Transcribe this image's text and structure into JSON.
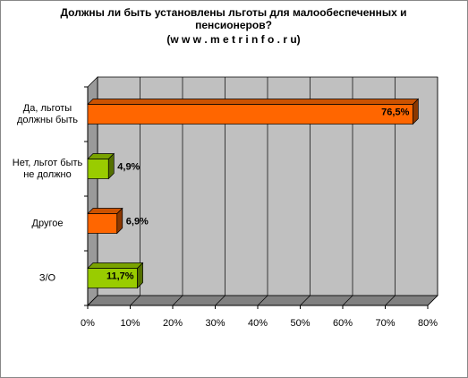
{
  "chart_data": {
    "type": "bar",
    "orientation": "horizontal",
    "title": "Должны ли быть установлены льготы для малообеспеченных и пенсионеров?",
    "subtitle": "(w w w . m e t r i n f o . r u)",
    "categories": [
      "Да, льготы должны быть",
      "Нет, льгот быть не должно",
      "Другое",
      "З/О"
    ],
    "values": [
      76.5,
      4.9,
      6.9,
      11.7
    ],
    "value_labels": [
      "76,5%",
      "4,9%",
      "6,9%",
      "11,7%"
    ],
    "colors": [
      "#ff6600",
      "#99cc00",
      "#ff6600",
      "#99cc00"
    ],
    "xlim": [
      0,
      80
    ],
    "xticks": [
      {
        "value": 0,
        "label": "0%"
      },
      {
        "value": 10,
        "label": "10%"
      },
      {
        "value": 20,
        "label": "20%"
      },
      {
        "value": 30,
        "label": "30%"
      },
      {
        "value": 40,
        "label": "40%"
      },
      {
        "value": 50,
        "label": "50%"
      },
      {
        "value": 60,
        "label": "60%"
      },
      {
        "value": 70,
        "label": "70%"
      },
      {
        "value": 80,
        "label": "80%"
      }
    ],
    "grid": true
  }
}
